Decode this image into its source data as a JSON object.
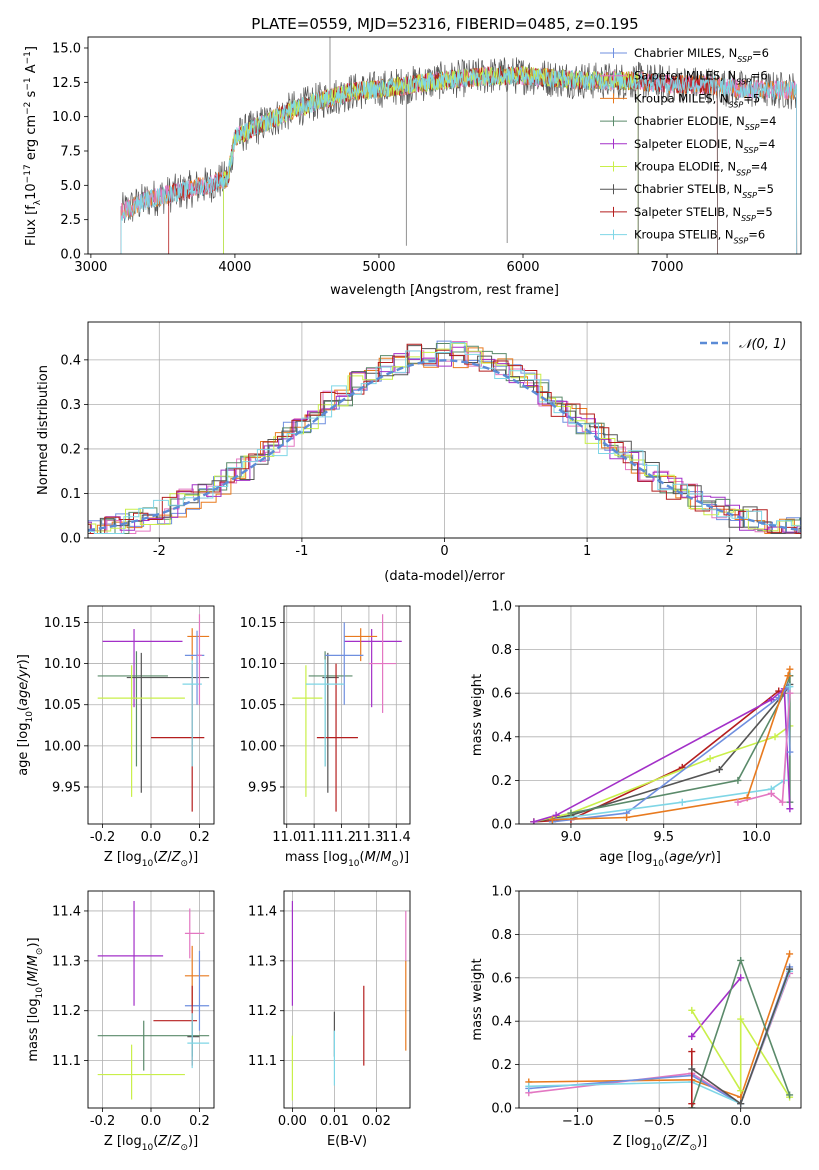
{
  "figure": {
    "title": "PLATE=0559, MJD=52316, FIBERID=0485, z=0.195"
  },
  "colors": {
    "Chabrier MILES": "#6f8fdf",
    "Salpeter MILES": "#e377c2",
    "Kroupa MILES": "#e87a1f",
    "Chabrier ELODIE": "#5a8a6a",
    "Salpeter ELODIE": "#a330c8",
    "Kroupa ELODIE": "#c9ef4a",
    "Chabrier STELIB": "#555555",
    "Salpeter STELIB": "#b41e1e",
    "Kroupa STELIB": "#7fd6e6"
  },
  "chart_data": [
    {
      "id": "spectrum",
      "type": "line",
      "xlabel": "wavelength [Angstrom, rest frame]",
      "ylabel": "Flux [f_λ 10^-17 erg cm^-2 s^-1 A^-1]",
      "xlim": [
        2980,
        7930
      ],
      "ylim": [
        0,
        15.8
      ],
      "xticks": [
        3000,
        4000,
        5000,
        6000,
        7000
      ],
      "yticks": [
        0.0,
        2.5,
        5.0,
        7.5,
        10.0,
        12.5,
        15.0
      ],
      "legend_position": "top-right",
      "legend": [
        {
          "name": "Chabrier MILES",
          "nssp": "6"
        },
        {
          "name": "Salpeter MILES",
          "nssp": "6"
        },
        {
          "name": "Kroupa MILES",
          "nssp": "5"
        },
        {
          "name": "Chabrier ELODIE",
          "nssp": "4"
        },
        {
          "name": "Salpeter ELODIE",
          "nssp": "4"
        },
        {
          "name": "Kroupa ELODIE",
          "nssp": "4"
        },
        {
          "name": "Chabrier STELIB",
          "nssp": "5"
        },
        {
          "name": "Salpeter STELIB",
          "nssp": "5"
        },
        {
          "name": "Kroupa STELIB",
          "nssp": "6"
        }
      ],
      "continuum": [
        [
          3200,
          3.0
        ],
        [
          3400,
          4.0
        ],
        [
          3600,
          4.5
        ],
        [
          3800,
          5.0
        ],
        [
          3950,
          5.5
        ],
        [
          4000,
          8.5
        ],
        [
          4200,
          9.5
        ],
        [
          4400,
          10.5
        ],
        [
          4600,
          11.2
        ],
        [
          4800,
          11.8
        ],
        [
          5000,
          12.0
        ],
        [
          5200,
          12.3
        ],
        [
          5400,
          12.6
        ],
        [
          5600,
          12.8
        ],
        [
          5800,
          13.0
        ],
        [
          6000,
          13.0
        ],
        [
          6200,
          12.8
        ],
        [
          6500,
          12.6
        ],
        [
          6800,
          12.6
        ],
        [
          7000,
          12.4
        ],
        [
          7300,
          12.3
        ],
        [
          7500,
          12.0
        ],
        [
          7900,
          11.9
        ]
      ],
      "spikes": [
        [
          4660,
          15.8
        ],
        [
          5190,
          0.6
        ],
        [
          5890,
          0.8
        ],
        [
          6800,
          0.0
        ],
        [
          7350,
          0.0
        ]
      ]
    },
    {
      "id": "residuals",
      "type": "line",
      "xlabel": "(data-model)/error",
      "ylabel": "Normed distribution",
      "xlim": [
        -2.5,
        2.5
      ],
      "ylim": [
        0,
        0.485
      ],
      "xticks": [
        -2,
        -1,
        0,
        1,
        2
      ],
      "yticks": [
        0.0,
        0.1,
        0.2,
        0.3,
        0.4
      ],
      "grid": true,
      "legend_position": "top-right",
      "reference": {
        "name": "𝒩(0, 1)",
        "mu": 0,
        "sigma": 1
      }
    },
    {
      "id": "age_vs_Z",
      "type": "scatter",
      "xlabel": "Z [log10(Z/Z⊙)]",
      "ylabel": "age [log10(age/yr)]",
      "xlim": [
        -0.26,
        0.26
      ],
      "ylim": [
        9.905,
        10.17
      ],
      "xticks": [
        -0.2,
        0.0,
        0.2
      ],
      "yticks": [
        9.95,
        10.0,
        10.05,
        10.1,
        10.15
      ],
      "grid": true,
      "points": [
        {
          "model": "Salpeter ELODIE",
          "x": -0.07,
          "xerr": [
            0.13,
            0.2
          ],
          "y": 10.127,
          "yerr": [
            0.08,
            0.015
          ]
        },
        {
          "model": "Chabrier ELODIE",
          "x": -0.06,
          "xerr": [
            0.16,
            0.13
          ],
          "y": 10.085,
          "yerr": [
            0.11,
            0.03
          ]
        },
        {
          "model": "Chabrier STELIB",
          "x": -0.04,
          "xerr": [
            0.06,
            0.28
          ],
          "y": 10.083,
          "yerr": [
            0.14,
            0.03
          ]
        },
        {
          "model": "Kroupa ELODIE",
          "x": -0.08,
          "xerr": [
            0.14,
            0.22
          ],
          "y": 10.058,
          "yerr": [
            0.12,
            0.04
          ]
        },
        {
          "model": "Salpeter STELIB",
          "x": 0.17,
          "xerr": [
            0.17,
            0.05
          ],
          "y": 10.01,
          "yerr": [
            0.09,
            0.09
          ]
        },
        {
          "model": "Kroupa MILES",
          "x": 0.17,
          "xerr": [
            0.02,
            0.07
          ],
          "y": 10.133,
          "yerr": [
            0.03,
            0.01
          ]
        },
        {
          "model": "Chabrier MILES",
          "x": 0.19,
          "xerr": [
            0.05,
            0.03
          ],
          "y": 10.11,
          "yerr": [
            0.06,
            0.03
          ]
        },
        {
          "model": "Kroupa STELIB",
          "x": 0.17,
          "xerr": [
            0.04,
            0.04
          ],
          "y": 10.075,
          "yerr": [
            0.1,
            0.03
          ]
        },
        {
          "model": "Salpeter MILES",
          "x": 0.2,
          "xerr": [
            0.01,
            0.01
          ],
          "y": 10.11,
          "yerr": [
            0.06,
            0.05
          ]
        }
      ]
    },
    {
      "id": "age_vs_mass",
      "type": "scatter",
      "xlabel": "mass [log10(M/M⊙)]",
      "ylabel": "",
      "xlim": [
        10.99,
        11.45
      ],
      "ylim": [
        9.905,
        10.17
      ],
      "xticks": [
        11.0,
        11.1,
        11.2,
        11.3,
        11.4
      ],
      "yticks": [
        9.95,
        10.0,
        10.05,
        10.1,
        10.15
      ],
      "grid": true,
      "points": [
        {
          "model": "Salpeter ELODIE",
          "x": 11.31,
          "xerr": [
            0.1,
            0.11
          ],
          "y": 10.127,
          "yerr": [
            0.08,
            0.015
          ]
        },
        {
          "model": "Chabrier ELODIE",
          "x": 11.14,
          "xerr": [
            0.06,
            0.1
          ],
          "y": 10.085,
          "yerr": [
            0.11,
            0.03
          ]
        },
        {
          "model": "Chabrier STELIB",
          "x": 11.15,
          "xerr": [
            0.02,
            0.04
          ],
          "y": 10.083,
          "yerr": [
            0.14,
            0.03
          ]
        },
        {
          "model": "Kroupa ELODIE",
          "x": 11.07,
          "xerr": [
            0.05,
            0.06
          ],
          "y": 10.058,
          "yerr": [
            0.12,
            0.04
          ]
        },
        {
          "model": "Salpeter STELIB",
          "x": 11.18,
          "xerr": [
            0.07,
            0.08
          ],
          "y": 10.01,
          "yerr": [
            0.09,
            0.09
          ]
        },
        {
          "model": "Kroupa MILES",
          "x": 11.27,
          "xerr": [
            0.06,
            0.06
          ],
          "y": 10.133,
          "yerr": [
            0.03,
            0.01
          ]
        },
        {
          "model": "Chabrier MILES",
          "x": 11.21,
          "xerr": [
            0.07,
            0.07
          ],
          "y": 10.11,
          "yerr": [
            0.06,
            0.04
          ]
        },
        {
          "model": "Kroupa STELIB",
          "x": 11.14,
          "xerr": [
            0.07,
            0.07
          ],
          "y": 10.075,
          "yerr": [
            0.1,
            0.03
          ]
        },
        {
          "model": "Salpeter MILES",
          "x": 11.35,
          "xerr": [
            0.05,
            0.05
          ],
          "y": 10.1,
          "yerr": [
            0.06,
            0.06
          ]
        }
      ]
    },
    {
      "id": "weight_vs_age",
      "type": "line",
      "xlabel": "age [log10(age/yr)]",
      "ylabel": "mass weight",
      "xlim": [
        8.72,
        10.24
      ],
      "ylim": [
        0,
        1.0
      ],
      "xticks": [
        9.0,
        9.5,
        10.0
      ],
      "yticks": [
        0.0,
        0.2,
        0.4,
        0.6,
        0.8,
        1.0
      ],
      "grid": true,
      "series": [
        {
          "model": "Salpeter STELIB",
          "x": [
            8.8,
            9.0,
            9.6,
            10.12,
            10.15
          ],
          "y": [
            0.01,
            0.02,
            0.26,
            0.61,
            0.6
          ]
        },
        {
          "model": "Chabrier STELIB",
          "x": [
            8.8,
            9.0,
            9.8,
            10.15,
            10.18
          ],
          "y": [
            0.01,
            0.04,
            0.25,
            0.6,
            0.64
          ]
        },
        {
          "model": "Kroupa ELODIE",
          "x": [
            8.8,
            9.0,
            9.75,
            10.1,
            10.18
          ],
          "y": [
            0.01,
            0.05,
            0.3,
            0.4,
            0.45
          ]
        },
        {
          "model": "Chabrier ELODIE",
          "x": [
            9.0,
            9.9,
            10.15,
            10.18,
            10.18
          ],
          "y": [
            0.05,
            0.2,
            0.6,
            0.68,
            0.1
          ]
        },
        {
          "model": "Salpeter ELODIE",
          "x": [
            8.8,
            8.92,
            10.08,
            10.15,
            10.18
          ],
          "y": [
            0.01,
            0.04,
            0.57,
            0.62,
            0.07
          ]
        },
        {
          "model": "Chabrier MILES",
          "x": [
            8.9,
            9.3,
            10.12,
            10.17,
            10.18
          ],
          "y": [
            0.01,
            0.05,
            0.58,
            0.63,
            0.33
          ]
        },
        {
          "model": "Kroupa STELIB",
          "x": [
            8.9,
            9.6,
            10.08,
            10.15,
            10.18
          ],
          "y": [
            0.02,
            0.1,
            0.16,
            0.2,
            0.63
          ]
        },
        {
          "model": "Kroupa MILES",
          "x": [
            8.9,
            9.3,
            9.95,
            10.17,
            10.18
          ],
          "y": [
            0.02,
            0.03,
            0.12,
            0.68,
            0.71
          ]
        },
        {
          "model": "Salpeter MILES",
          "x": [
            9.9,
            10.08,
            10.14,
            10.18
          ],
          "y": [
            0.1,
            0.14,
            0.1,
            0.6
          ]
        }
      ]
    },
    {
      "id": "mass_vs_Z",
      "type": "scatter",
      "xlabel": "Z [log10(Z/Z⊙)]",
      "ylabel": "mass [log10(M/M⊙)]",
      "xlim": [
        -0.26,
        0.26
      ],
      "ylim": [
        11.005,
        11.44
      ],
      "xticks": [
        -0.2,
        0.0,
        0.2
      ],
      "yticks": [
        11.1,
        11.2,
        11.3,
        11.4
      ],
      "grid": true,
      "points": [
        {
          "model": "Salpeter ELODIE",
          "x": -0.07,
          "xerr": [
            0.15,
            0.12
          ],
          "y": 11.31,
          "yerr": [
            0.1,
            0.11
          ]
        },
        {
          "model": "Salpeter MILES",
          "x": 0.16,
          "xerr": [
            0.02,
            0.06
          ],
          "y": 11.355,
          "yerr": [
            0.05,
            0.05
          ]
        },
        {
          "model": "Kroupa MILES",
          "x": 0.17,
          "xerr": [
            0.03,
            0.07
          ],
          "y": 11.27,
          "yerr": [
            0.06,
            0.06
          ]
        },
        {
          "model": "Chabrier MILES",
          "x": 0.2,
          "xerr": [
            0.06,
            0.04
          ],
          "y": 11.21,
          "yerr": [
            0.05,
            0.11
          ]
        },
        {
          "model": "Salpeter STELIB",
          "x": 0.17,
          "xerr": [
            0.16,
            0.02
          ],
          "y": 11.18,
          "yerr": [
            0.09,
            0.07
          ]
        },
        {
          "model": "Chabrier ELODIE",
          "x": -0.03,
          "xerr": [
            0.19,
            0.27
          ],
          "y": 11.15,
          "yerr": [
            0.07,
            0.03
          ]
        },
        {
          "model": "Chabrier STELIB",
          "x": 0.17,
          "xerr": [
            0.02,
            0.03
          ],
          "y": 11.148,
          "yerr": [
            0.04,
            0.03
          ]
        },
        {
          "model": "Kroupa STELIB",
          "x": 0.17,
          "xerr": [
            0.02,
            0.07
          ],
          "y": 11.135,
          "yerr": [
            0.05,
            0.06
          ]
        },
        {
          "model": "Kroupa ELODIE",
          "x": -0.08,
          "xerr": [
            0.14,
            0.22
          ],
          "y": 11.072,
          "yerr": [
            0.05,
            0.06
          ]
        }
      ]
    },
    {
      "id": "mass_vs_ebv",
      "type": "scatter",
      "xlabel": "E(B-V)",
      "ylabel": "",
      "xlim": [
        -0.002,
        0.028
      ],
      "ylim": [
        11.005,
        11.44
      ],
      "xticks": [
        0.0,
        0.01,
        0.02
      ],
      "yticks": [
        11.1,
        11.2,
        11.3,
        11.4
      ],
      "grid": true,
      "points": [
        {
          "model": "Salpeter ELODIE",
          "x": 0.0,
          "xerr": [
            0,
            0
          ],
          "y": 11.31,
          "yerr": [
            0.1,
            0.11
          ]
        },
        {
          "model": "Kroupa ELODIE",
          "x": 0.0,
          "xerr": [
            0,
            0
          ],
          "y": 11.09,
          "yerr": [
            0.07,
            0.06
          ]
        },
        {
          "model": "Chabrier STELIB",
          "x": 0.01,
          "xerr": [
            0,
            0
          ],
          "y": 11.148,
          "yerr": [
            0.04,
            0.05
          ]
        },
        {
          "model": "Kroupa STELIB",
          "x": 0.01,
          "xerr": [
            0,
            0
          ],
          "y": 11.1,
          "yerr": [
            0.05,
            0.06
          ]
        },
        {
          "model": "Salpeter STELIB",
          "x": 0.017,
          "xerr": [
            0,
            0
          ],
          "y": 11.17,
          "yerr": [
            0.08,
            0.08
          ]
        },
        {
          "model": "Salpeter MILES",
          "x": 0.027,
          "xerr": [
            0,
            0
          ],
          "y": 11.35,
          "yerr": [
            0.05,
            0.05
          ]
        },
        {
          "model": "Kroupa MILES",
          "x": 0.027,
          "xerr": [
            0,
            0
          ],
          "y": 11.22,
          "yerr": [
            0.1,
            0.08
          ]
        }
      ]
    },
    {
      "id": "weight_vs_Z",
      "type": "line",
      "xlabel": "Z [log10(Z/Z⊙)]",
      "ylabel": "mass weight",
      "xlim": [
        -1.36,
        0.37
      ],
      "ylim": [
        0,
        1.0
      ],
      "xticks": [
        -1.0,
        -0.5,
        0.0
      ],
      "yticks": [
        0.0,
        0.2,
        0.4,
        0.6,
        0.8,
        1.0
      ],
      "grid": true,
      "series": [
        {
          "model": "Kroupa MILES",
          "x": [
            -1.3,
            -0.3,
            0.0,
            0.3
          ],
          "y": [
            0.12,
            0.13,
            0.05,
            0.71
          ]
        },
        {
          "model": "Salpeter MILES",
          "x": [
            -1.3,
            -0.3,
            0.0,
            0.3
          ],
          "y": [
            0.07,
            0.16,
            0.02,
            0.62
          ]
        },
        {
          "model": "Chabrier MILES",
          "x": [
            -1.3,
            -0.3,
            0.0,
            0.3
          ],
          "y": [
            0.09,
            0.15,
            0.02,
            0.65
          ]
        },
        {
          "model": "Kroupa STELIB",
          "x": [
            -1.3,
            -0.3,
            0.0,
            0.3
          ],
          "y": [
            0.1,
            0.12,
            0.02,
            0.63
          ]
        },
        {
          "model": "Salpeter ELODIE",
          "x": [
            -0.3,
            -0.3,
            0.0
          ],
          "y": [
            0.33,
            0.33,
            0.6
          ]
        },
        {
          "model": "Kroupa ELODIE",
          "x": [
            -0.3,
            0.0,
            0.0,
            0.3
          ],
          "y": [
            0.45,
            0.08,
            0.41,
            0.05
          ]
        },
        {
          "model": "Chabrier ELODIE",
          "x": [
            -0.3,
            0.0,
            0.3
          ],
          "y": [
            0.0,
            0.68,
            0.06
          ]
        },
        {
          "model": "Salpeter STELIB",
          "x": [
            -0.3,
            -0.3
          ],
          "y": [
            0.26,
            0.02
          ]
        },
        {
          "model": "Chabrier STELIB",
          "x": [
            -0.3,
            0.0,
            0.3
          ],
          "y": [
            0.18,
            0.02,
            0.64
          ]
        }
      ]
    }
  ]
}
